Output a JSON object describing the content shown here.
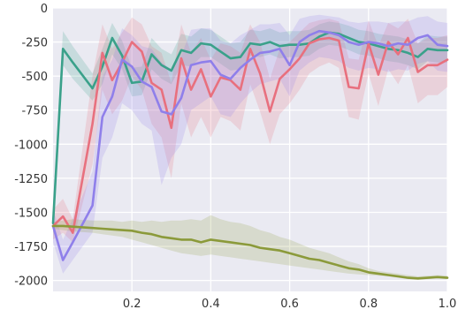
{
  "chart_data": {
    "type": "line",
    "title": "",
    "xlabel": "",
    "ylabel": "",
    "xlim": [
      0.0,
      1.0
    ],
    "ylim": [
      -2080,
      0
    ],
    "grid": true,
    "legend": "none",
    "background_color": "#eaeaf2",
    "x_ticks": [
      0.2,
      0.4,
      0.6,
      0.8,
      1.0
    ],
    "x_tick_labels": [
      "0.2",
      "0.4",
      "0.6",
      "0.8",
      "1.0"
    ],
    "y_ticks": [
      0,
      -250,
      -500,
      -750,
      -1000,
      -1250,
      -1500,
      -1750,
      -2000
    ],
    "y_tick_labels": [
      "0",
      "-250",
      "-500",
      "-750",
      "-1000",
      "-1250",
      "-1500",
      "-1750",
      "-2000"
    ],
    "x": [
      0.0,
      0.025,
      0.05,
      0.1,
      0.125,
      0.15,
      0.175,
      0.2,
      0.225,
      0.25,
      0.275,
      0.3,
      0.325,
      0.35,
      0.375,
      0.4,
      0.425,
      0.45,
      0.475,
      0.5,
      0.525,
      0.55,
      0.575,
      0.6,
      0.625,
      0.65,
      0.675,
      0.7,
      0.725,
      0.75,
      0.775,
      0.8,
      0.825,
      0.85,
      0.875,
      0.9,
      0.925,
      0.95,
      0.975,
      1.0
    ],
    "series": [
      {
        "color": "#3aa18a",
        "values": [
          -1580,
          -300,
          -400,
          -590,
          -430,
          -220,
          -350,
          -550,
          -540,
          -340,
          -420,
          -460,
          -310,
          -330,
          -260,
          -270,
          -320,
          -370,
          -360,
          -260,
          -270,
          -250,
          -280,
          -270,
          -270,
          -260,
          -210,
          -180,
          -190,
          -220,
          -250,
          -260,
          -280,
          -300,
          -310,
          -330,
          -360,
          -300,
          -310,
          -310
        ],
        "lower": [
          -1700,
          -420,
          -520,
          -680,
          -560,
          -340,
          -450,
          -650,
          -640,
          -450,
          -520,
          -560,
          -420,
          -430,
          -360,
          -360,
          -410,
          -460,
          -450,
          -350,
          -360,
          -340,
          -370,
          -360,
          -360,
          -350,
          -300,
          -270,
          -280,
          -310,
          -340,
          -350,
          -370,
          -390,
          -400,
          -420,
          -450,
          -390,
          -400,
          -400
        ],
        "upper": [
          -1450,
          -170,
          -280,
          -480,
          -300,
          -110,
          -240,
          -440,
          -430,
          -220,
          -300,
          -340,
          -190,
          -210,
          -150,
          -160,
          -210,
          -260,
          -250,
          -160,
          -170,
          -150,
          -180,
          -170,
          -170,
          -160,
          -120,
          -100,
          -110,
          -130,
          -160,
          -170,
          -190,
          -200,
          -210,
          -230,
          -260,
          -200,
          -210,
          -210
        ]
      },
      {
        "color": "#e8707e",
        "values": [
          -1600,
          -1530,
          -1650,
          -850,
          -330,
          -530,
          -400,
          -250,
          -320,
          -550,
          -600,
          -880,
          -370,
          -600,
          -450,
          -650,
          -510,
          -530,
          -600,
          -300,
          -480,
          -760,
          -520,
          -450,
          -370,
          -260,
          -230,
          -220,
          -240,
          -580,
          -590,
          -260,
          -490,
          -250,
          -340,
          -220,
          -470,
          -420,
          -420,
          -380
        ],
        "lower": [
          -1700,
          -1650,
          -1720,
          -1150,
          -600,
          -780,
          -680,
          -500,
          -600,
          -850,
          -950,
          -1250,
          -700,
          -950,
          -800,
          -950,
          -800,
          -830,
          -900,
          -560,
          -760,
          -1000,
          -780,
          -700,
          -600,
          -480,
          -430,
          -400,
          -440,
          -800,
          -820,
          -480,
          -720,
          -450,
          -560,
          -420,
          -700,
          -640,
          -640,
          -580
        ],
        "upper": [
          -1480,
          -1400,
          -1550,
          -500,
          -120,
          -300,
          -180,
          -70,
          -120,
          -280,
          -330,
          -550,
          -120,
          -330,
          -220,
          -380,
          -260,
          -280,
          -330,
          -120,
          -250,
          -520,
          -300,
          -250,
          -180,
          -110,
          -90,
          -80,
          -100,
          -370,
          -380,
          -90,
          -280,
          -110,
          -150,
          -80,
          -260,
          -220,
          -220,
          -200
        ]
      },
      {
        "color": "#8f7fea",
        "values": [
          -1600,
          -1850,
          -1720,
          -1450,
          -800,
          -650,
          -380,
          -430,
          -540,
          -580,
          -760,
          -780,
          -660,
          -420,
          -400,
          -390,
          -490,
          -520,
          -440,
          -380,
          -330,
          -320,
          -300,
          -420,
          -250,
          -200,
          -170,
          -180,
          -200,
          -250,
          -270,
          -250,
          -260,
          -280,
          -260,
          -270,
          -220,
          -200,
          -270,
          -280
        ],
        "lower": [
          -1720,
          -1950,
          -1850,
          -1650,
          -1100,
          -950,
          -700,
          -750,
          -850,
          -900,
          -1300,
          -1100,
          -1000,
          -750,
          -700,
          -650,
          -780,
          -800,
          -700,
          -620,
          -560,
          -540,
          -520,
          -650,
          -460,
          -400,
          -360,
          -370,
          -390,
          -440,
          -460,
          -440,
          -450,
          -470,
          -450,
          -460,
          -410,
          -390,
          -460,
          -470
        ],
        "upper": [
          -1480,
          -1700,
          -1550,
          -1200,
          -500,
          -380,
          -150,
          -200,
          -280,
          -300,
          -400,
          -450,
          -350,
          -160,
          -150,
          -150,
          -240,
          -260,
          -200,
          -160,
          -120,
          -120,
          -110,
          -200,
          -80,
          -60,
          -50,
          -60,
          -70,
          -100,
          -110,
          -100,
          -100,
          -110,
          -100,
          -100,
          -70,
          -60,
          -100,
          -110
        ]
      },
      {
        "color": "#8b9a3a",
        "values": [
          -1600,
          -1600,
          -1605,
          -1615,
          -1620,
          -1625,
          -1630,
          -1635,
          -1650,
          -1660,
          -1680,
          -1690,
          -1700,
          -1700,
          -1720,
          -1700,
          -1710,
          -1720,
          -1730,
          -1740,
          -1760,
          -1770,
          -1780,
          -1800,
          -1820,
          -1840,
          -1850,
          -1870,
          -1890,
          -1910,
          -1920,
          -1940,
          -1950,
          -1960,
          -1970,
          -1980,
          -1985,
          -1980,
          -1975,
          -1980
        ],
        "lower": [
          -1620,
          -1630,
          -1640,
          -1650,
          -1660,
          -1670,
          -1680,
          -1700,
          -1720,
          -1740,
          -1760,
          -1780,
          -1800,
          -1810,
          -1820,
          -1810,
          -1820,
          -1830,
          -1840,
          -1850,
          -1860,
          -1870,
          -1880,
          -1890,
          -1900,
          -1910,
          -1920,
          -1930,
          -1940,
          -1950,
          -1955,
          -1960,
          -1965,
          -1970,
          -1980,
          -1990,
          -1995,
          -1990,
          -1985,
          -1990
        ],
        "upper": [
          -1570,
          -1560,
          -1550,
          -1560,
          -1560,
          -1560,
          -1570,
          -1560,
          -1570,
          -1560,
          -1570,
          -1560,
          -1560,
          -1550,
          -1560,
          -1520,
          -1550,
          -1570,
          -1580,
          -1600,
          -1630,
          -1650,
          -1680,
          -1700,
          -1730,
          -1760,
          -1780,
          -1800,
          -1830,
          -1860,
          -1880,
          -1910,
          -1930,
          -1940,
          -1950,
          -1960,
          -1970,
          -1965,
          -1960,
          -1965
        ]
      }
    ]
  }
}
